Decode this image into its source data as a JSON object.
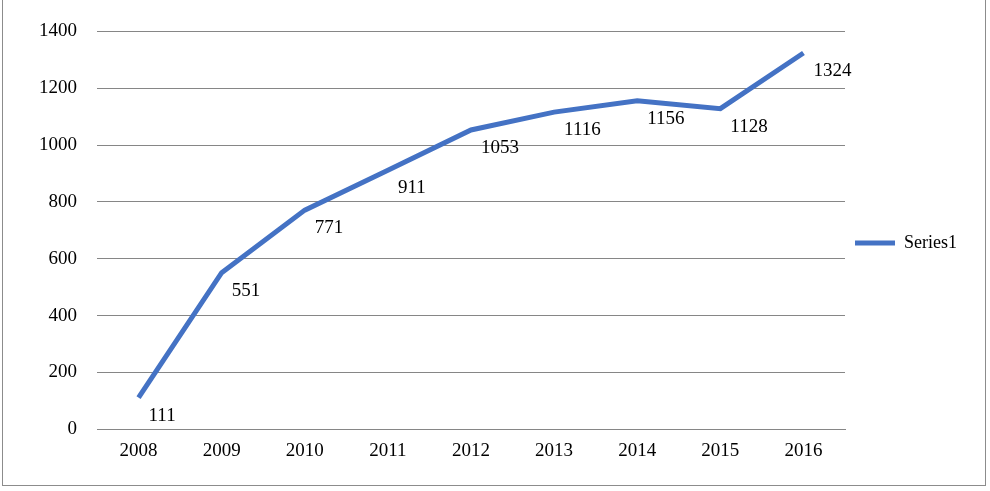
{
  "chart_data": {
    "type": "line",
    "categories": [
      "2008",
      "2009",
      "2010",
      "2011",
      "2012",
      "2013",
      "2014",
      "2015",
      "2016"
    ],
    "series": [
      {
        "name": "Series1",
        "color": "#4472c4",
        "values": [
          111,
          551,
          771,
          911,
          1053,
          1116,
          1156,
          1128,
          1324
        ]
      }
    ],
    "ylim": [
      0,
      1400
    ],
    "yticks": [
      0,
      200,
      400,
      600,
      800,
      1000,
      1200,
      1400
    ],
    "grid": true,
    "legend": "right",
    "data_labels": true
  }
}
